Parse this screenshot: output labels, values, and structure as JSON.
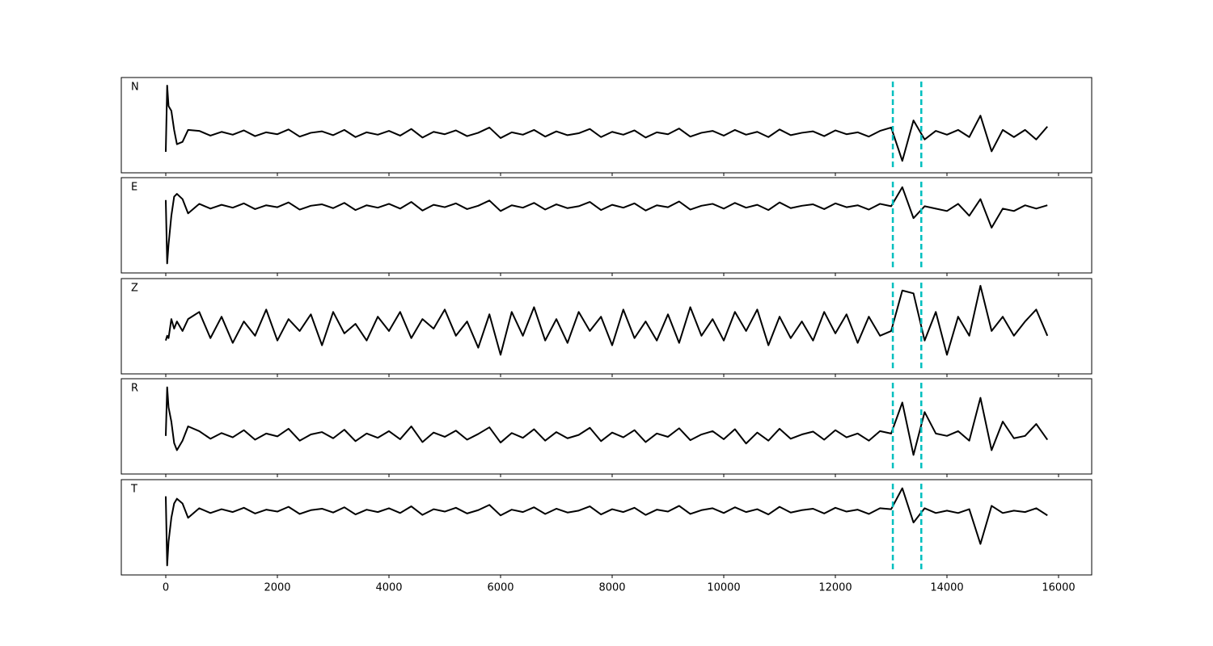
{
  "chart_data": [
    {
      "type": "line",
      "label": "N",
      "color": "#000000",
      "xlim": [
        -797,
        16594
      ],
      "ylim": [
        -1,
        1
      ],
      "xticks": [
        0,
        2000,
        4000,
        6000,
        8000,
        10000,
        12000,
        14000,
        16000
      ],
      "show_xticklabels": false,
      "vlines": [
        13030,
        13540
      ],
      "vline_color": "#00bfbf",
      "x": [
        0,
        25,
        50,
        100,
        150,
        200,
        300,
        400,
        600,
        800,
        1000,
        1200,
        1400,
        1600,
        1800,
        2000,
        2200,
        2400,
        2600,
        2800,
        3000,
        3200,
        3400,
        3600,
        3800,
        4000,
        4200,
        4400,
        4600,
        4800,
        5000,
        5200,
        5400,
        5600,
        5800,
        6000,
        6200,
        6400,
        6600,
        6800,
        7000,
        7200,
        7400,
        7600,
        7800,
        8000,
        8200,
        8400,
        8600,
        8800,
        9000,
        9200,
        9400,
        9600,
        9800,
        10000,
        10200,
        10400,
        10600,
        10800,
        11000,
        11200,
        11400,
        11600,
        11800,
        12000,
        12200,
        12400,
        12600,
        12800,
        13000,
        13200,
        13400,
        13600,
        13800,
        14000,
        14200,
        14400,
        14600,
        14800,
        15000,
        15200,
        15400,
        15600,
        15800
      ],
      "values": [
        -0.56,
        0.83,
        0.4,
        0.3,
        -0.1,
        -0.4,
        -0.35,
        -0.1,
        -0.12,
        -0.22,
        -0.14,
        -0.2,
        -0.11,
        -0.23,
        -0.15,
        -0.19,
        -0.09,
        -0.24,
        -0.16,
        -0.13,
        -0.21,
        -0.1,
        -0.25,
        -0.15,
        -0.2,
        -0.12,
        -0.22,
        -0.08,
        -0.26,
        -0.14,
        -0.19,
        -0.11,
        -0.23,
        -0.16,
        -0.05,
        -0.27,
        -0.15,
        -0.2,
        -0.1,
        -0.24,
        -0.13,
        -0.21,
        -0.17,
        -0.08,
        -0.25,
        -0.14,
        -0.2,
        -0.11,
        -0.26,
        -0.15,
        -0.19,
        -0.07,
        -0.24,
        -0.16,
        -0.12,
        -0.22,
        -0.1,
        -0.2,
        -0.14,
        -0.25,
        -0.09,
        -0.21,
        -0.16,
        -0.13,
        -0.23,
        -0.11,
        -0.19,
        -0.15,
        -0.24,
        -0.12,
        -0.05,
        -0.75,
        0.1,
        -0.3,
        -0.12,
        -0.2,
        -0.1,
        -0.25,
        0.2,
        -0.55,
        -0.1,
        -0.25,
        -0.1,
        -0.3,
        -0.03
      ]
    },
    {
      "type": "line",
      "label": "E",
      "color": "#000000",
      "xlim": [
        -797,
        16594
      ],
      "ylim": [
        -1,
        1
      ],
      "xticks": [
        0,
        2000,
        4000,
        6000,
        8000,
        10000,
        12000,
        14000,
        16000
      ],
      "show_xticklabels": false,
      "vlines": [
        13030,
        13540
      ],
      "vline_color": "#00bfbf",
      "x": [
        0,
        25,
        50,
        100,
        150,
        200,
        300,
        400,
        600,
        800,
        1000,
        1200,
        1400,
        1600,
        1800,
        2000,
        2200,
        2400,
        2600,
        2800,
        3000,
        3200,
        3400,
        3600,
        3800,
        4000,
        4200,
        4400,
        4600,
        4800,
        5000,
        5200,
        5400,
        5600,
        5800,
        6000,
        6200,
        6400,
        6600,
        6800,
        7000,
        7200,
        7400,
        7600,
        7800,
        8000,
        8200,
        8400,
        8600,
        8800,
        9000,
        9200,
        9400,
        9600,
        9800,
        10000,
        10200,
        10400,
        10600,
        10800,
        11000,
        11200,
        11400,
        11600,
        11800,
        12000,
        12200,
        12400,
        12600,
        12800,
        13000,
        13200,
        13400,
        13600,
        13800,
        14000,
        14200,
        14400,
        14600,
        14800,
        15000,
        15200,
        15400,
        15600,
        15800
      ],
      "values": [
        0.53,
        -0.8,
        -0.4,
        0.2,
        0.6,
        0.66,
        0.55,
        0.25,
        0.45,
        0.35,
        0.43,
        0.37,
        0.46,
        0.34,
        0.42,
        0.38,
        0.48,
        0.33,
        0.41,
        0.44,
        0.36,
        0.47,
        0.32,
        0.42,
        0.37,
        0.45,
        0.35,
        0.49,
        0.31,
        0.43,
        0.38,
        0.46,
        0.34,
        0.41,
        0.52,
        0.3,
        0.42,
        0.37,
        0.47,
        0.33,
        0.44,
        0.36,
        0.4,
        0.49,
        0.32,
        0.43,
        0.37,
        0.46,
        0.31,
        0.42,
        0.38,
        0.5,
        0.33,
        0.41,
        0.45,
        0.35,
        0.47,
        0.37,
        0.43,
        0.32,
        0.48,
        0.36,
        0.41,
        0.44,
        0.34,
        0.46,
        0.38,
        0.42,
        0.33,
        0.45,
        0.4,
        0.8,
        0.15,
        0.4,
        0.35,
        0.3,
        0.45,
        0.2,
        0.55,
        -0.05,
        0.35,
        0.3,
        0.42,
        0.35,
        0.42
      ]
    },
    {
      "type": "line",
      "label": "Z",
      "color": "#000000",
      "xlim": [
        -797,
        16594
      ],
      "ylim": [
        -1,
        1
      ],
      "xticks": [
        0,
        2000,
        4000,
        6000,
        8000,
        10000,
        12000,
        14000,
        16000
      ],
      "show_xticklabels": false,
      "vlines": [
        13030,
        13540
      ],
      "vline_color": "#00bfbf",
      "x": [
        0,
        25,
        50,
        100,
        150,
        200,
        300,
        400,
        600,
        800,
        1000,
        1200,
        1400,
        1600,
        1800,
        2000,
        2200,
        2400,
        2600,
        2800,
        3000,
        3200,
        3400,
        3600,
        3800,
        4000,
        4200,
        4400,
        4600,
        4800,
        5000,
        5200,
        5400,
        5600,
        5800,
        6000,
        6200,
        6400,
        6600,
        6800,
        7000,
        7200,
        7400,
        7600,
        7800,
        8000,
        8200,
        8400,
        8600,
        8800,
        9000,
        9200,
        9400,
        9600,
        9800,
        10000,
        10200,
        10400,
        10600,
        10800,
        11000,
        11200,
        11400,
        11600,
        11800,
        12000,
        12200,
        12400,
        12600,
        12800,
        13000,
        13200,
        13400,
        13600,
        13800,
        14000,
        14200,
        14400,
        14600,
        14800,
        15000,
        15200,
        15400,
        15600,
        15800
      ],
      "values": [
        -0.3,
        -0.2,
        -0.25,
        0.15,
        -0.05,
        0.1,
        -0.1,
        0.15,
        0.3,
        -0.25,
        0.2,
        -0.35,
        0.1,
        -0.2,
        0.35,
        -0.3,
        0.15,
        -0.1,
        0.25,
        -0.4,
        0.3,
        -0.15,
        0.05,
        -0.3,
        0.2,
        -0.1,
        0.3,
        -0.25,
        0.15,
        -0.05,
        0.35,
        -0.2,
        0.1,
        -0.45,
        0.25,
        -0.6,
        0.3,
        -0.2,
        0.4,
        -0.3,
        0.15,
        -0.35,
        0.3,
        -0.1,
        0.2,
        -0.4,
        0.35,
        -0.25,
        0.1,
        -0.3,
        0.25,
        -0.35,
        0.4,
        -0.2,
        0.15,
        -0.3,
        0.3,
        -0.1,
        0.35,
        -0.4,
        0.2,
        -0.25,
        0.1,
        -0.3,
        0.3,
        -0.15,
        0.25,
        -0.35,
        0.2,
        -0.2,
        -0.1,
        0.75,
        0.69,
        -0.3,
        0.3,
        -0.6,
        0.2,
        -0.2,
        0.85,
        -0.1,
        0.2,
        -0.2,
        0.1,
        0.35,
        -0.2
      ]
    },
    {
      "type": "line",
      "label": "R",
      "color": "#000000",
      "xlim": [
        -797,
        16594
      ],
      "ylim": [
        -1,
        1
      ],
      "xticks": [
        0,
        2000,
        4000,
        6000,
        8000,
        10000,
        12000,
        14000,
        16000
      ],
      "show_xticklabels": false,
      "vlines": [
        13030,
        13540
      ],
      "vline_color": "#00bfbf",
      "x": [
        0,
        25,
        50,
        100,
        150,
        200,
        300,
        400,
        600,
        800,
        1000,
        1200,
        1400,
        1600,
        1800,
        2000,
        2200,
        2400,
        2600,
        2800,
        3000,
        3200,
        3400,
        3600,
        3800,
        4000,
        4200,
        4400,
        4600,
        4800,
        5000,
        5200,
        5400,
        5600,
        5800,
        6000,
        6200,
        6400,
        6600,
        6800,
        7000,
        7200,
        7400,
        7600,
        7800,
        8000,
        8200,
        8400,
        8600,
        8800,
        9000,
        9200,
        9400,
        9600,
        9800,
        10000,
        10200,
        10400,
        10600,
        10800,
        11000,
        11200,
        11400,
        11600,
        11800,
        12000,
        12200,
        12400,
        12600,
        12800,
        13000,
        13200,
        13400,
        13600,
        13800,
        14000,
        14200,
        14400,
        14600,
        14800,
        15000,
        15200,
        15400,
        15600,
        15800
      ],
      "values": [
        -0.2,
        0.82,
        0.4,
        0.1,
        -0.35,
        -0.5,
        -0.3,
        0.0,
        -0.1,
        -0.26,
        -0.14,
        -0.23,
        -0.08,
        -0.28,
        -0.15,
        -0.21,
        -0.05,
        -0.3,
        -0.17,
        -0.12,
        -0.25,
        -0.07,
        -0.31,
        -0.15,
        -0.24,
        -0.1,
        -0.27,
        0.0,
        -0.33,
        -0.13,
        -0.22,
        -0.09,
        -0.28,
        -0.16,
        -0.02,
        -0.34,
        -0.14,
        -0.24,
        -0.06,
        -0.3,
        -0.12,
        -0.25,
        -0.18,
        -0.03,
        -0.31,
        -0.13,
        -0.23,
        -0.08,
        -0.33,
        -0.15,
        -0.22,
        -0.04,
        -0.29,
        -0.17,
        -0.1,
        -0.27,
        -0.06,
        -0.36,
        -0.13,
        -0.3,
        -0.05,
        -0.26,
        -0.17,
        -0.11,
        -0.28,
        -0.08,
        -0.23,
        -0.15,
        -0.3,
        -0.1,
        -0.15,
        0.5,
        -0.6,
        0.3,
        -0.15,
        -0.2,
        -0.1,
        -0.3,
        0.6,
        -0.5,
        0.1,
        -0.25,
        -0.2,
        0.05,
        -0.28
      ]
    },
    {
      "type": "line",
      "label": "T",
      "color": "#000000",
      "xlim": [
        -797,
        16594
      ],
      "ylim": [
        -1,
        1
      ],
      "xticks": [
        0,
        2000,
        4000,
        6000,
        8000,
        10000,
        12000,
        14000,
        16000
      ],
      "show_xticklabels": true,
      "vlines": [
        13030,
        13540
      ],
      "vline_color": "#00bfbf",
      "x": [
        0,
        25,
        50,
        100,
        150,
        200,
        300,
        400,
        600,
        800,
        1000,
        1200,
        1400,
        1600,
        1800,
        2000,
        2200,
        2400,
        2600,
        2800,
        3000,
        3200,
        3400,
        3600,
        3800,
        4000,
        4200,
        4400,
        4600,
        4800,
        5000,
        5200,
        5400,
        5600,
        5800,
        6000,
        6200,
        6400,
        6600,
        6800,
        7000,
        7200,
        7400,
        7600,
        7800,
        8000,
        8200,
        8400,
        8600,
        8800,
        9000,
        9200,
        9400,
        9600,
        9800,
        10000,
        10200,
        10400,
        10600,
        10800,
        11000,
        11200,
        11400,
        11600,
        11800,
        12000,
        12200,
        12400,
        12600,
        12800,
        13000,
        13200,
        13400,
        13600,
        13800,
        14000,
        14200,
        14400,
        14600,
        14800,
        15000,
        15200,
        15400,
        15600,
        15800
      ],
      "values": [
        0.65,
        -0.8,
        -0.3,
        0.2,
        0.5,
        0.6,
        0.5,
        0.2,
        0.4,
        0.3,
        0.38,
        0.32,
        0.41,
        0.29,
        0.37,
        0.33,
        0.43,
        0.28,
        0.36,
        0.39,
        0.31,
        0.42,
        0.27,
        0.37,
        0.32,
        0.4,
        0.3,
        0.44,
        0.26,
        0.38,
        0.33,
        0.41,
        0.29,
        0.36,
        0.47,
        0.25,
        0.37,
        0.32,
        0.42,
        0.28,
        0.39,
        0.31,
        0.35,
        0.44,
        0.27,
        0.38,
        0.32,
        0.41,
        0.26,
        0.37,
        0.33,
        0.45,
        0.28,
        0.36,
        0.4,
        0.3,
        0.42,
        0.32,
        0.38,
        0.27,
        0.43,
        0.31,
        0.36,
        0.39,
        0.29,
        0.41,
        0.33,
        0.37,
        0.28,
        0.4,
        0.38,
        0.82,
        0.1,
        0.4,
        0.3,
        0.35,
        0.3,
        0.38,
        -0.35,
        0.45,
        0.3,
        0.35,
        0.32,
        0.4,
        0.25
      ]
    }
  ]
}
